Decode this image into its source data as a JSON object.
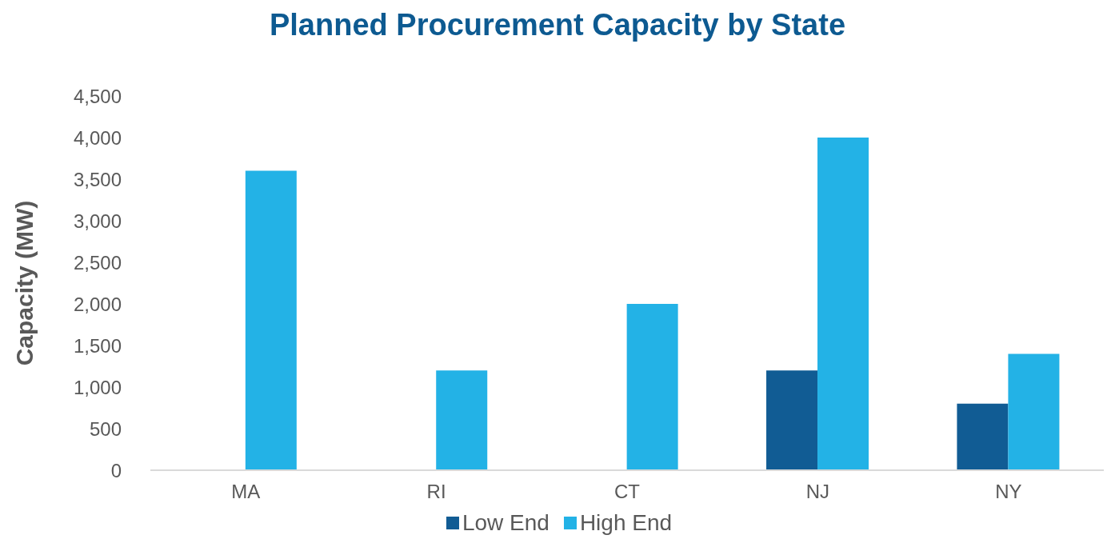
{
  "chart_data": {
    "type": "bar",
    "title": "Planned Procurement Capacity by State",
    "ylabel": "Capacity (MW)",
    "categories": [
      "MA",
      "RI",
      "CT",
      "NJ",
      "NY"
    ],
    "series": [
      {
        "name": "Low End",
        "color": "#115c94",
        "values": [
          null,
          null,
          null,
          1200,
          800
        ]
      },
      {
        "name": "High End",
        "color": "#23b2e6",
        "values": [
          3600,
          1200,
          2000,
          4000,
          1400
        ]
      }
    ],
    "ylim": [
      0,
      4500
    ],
    "yticks": [
      0,
      500,
      {
        "value": 1000,
        "label": "1,000"
      },
      {
        "value": 1500,
        "label": "1,500"
      },
      {
        "value": 2000,
        "label": "2,000"
      },
      {
        "value": 2500,
        "label": "2,500"
      },
      {
        "value": 3000,
        "label": "3,000"
      },
      {
        "value": 3500,
        "label": "3,500"
      },
      {
        "value": 4000,
        "label": "4,000"
      },
      {
        "value": 4500,
        "label": "4,500"
      }
    ],
    "grid": false,
    "legend": "bottom"
  }
}
